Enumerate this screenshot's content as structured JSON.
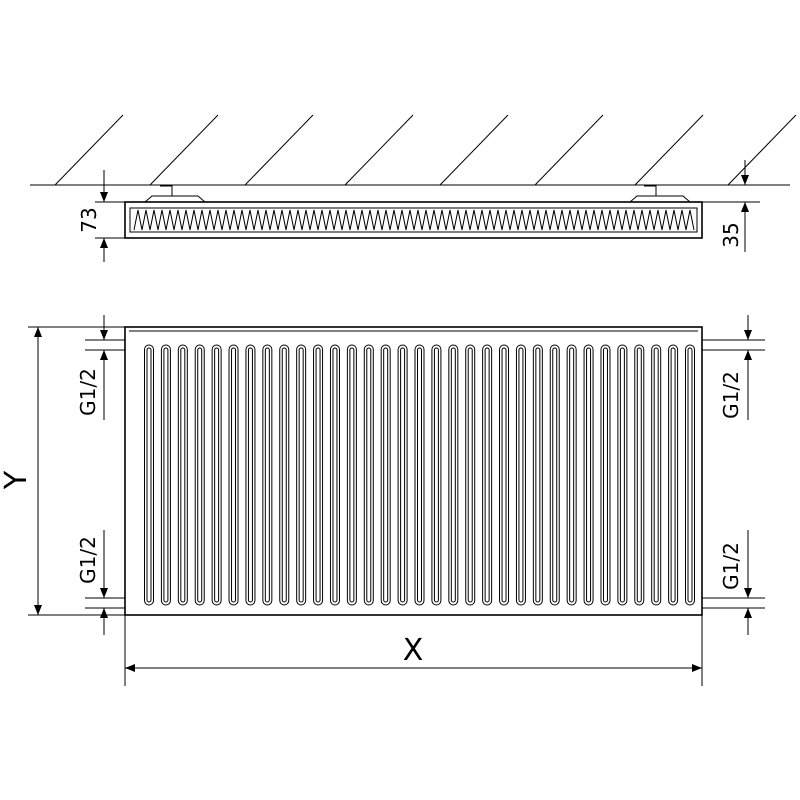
{
  "side_view": {
    "depth_label": "73",
    "wall_gap_label": "35"
  },
  "front_view": {
    "height_label": "Y",
    "width_label": "X",
    "connections": {
      "left_top": "G1/2",
      "left_bottom": "G1/2",
      "right_top": "G1/2",
      "right_bottom": "G1/2"
    },
    "convector_tube_count": 33
  },
  "colors": {
    "line": "#000000",
    "background": "#ffffff"
  }
}
